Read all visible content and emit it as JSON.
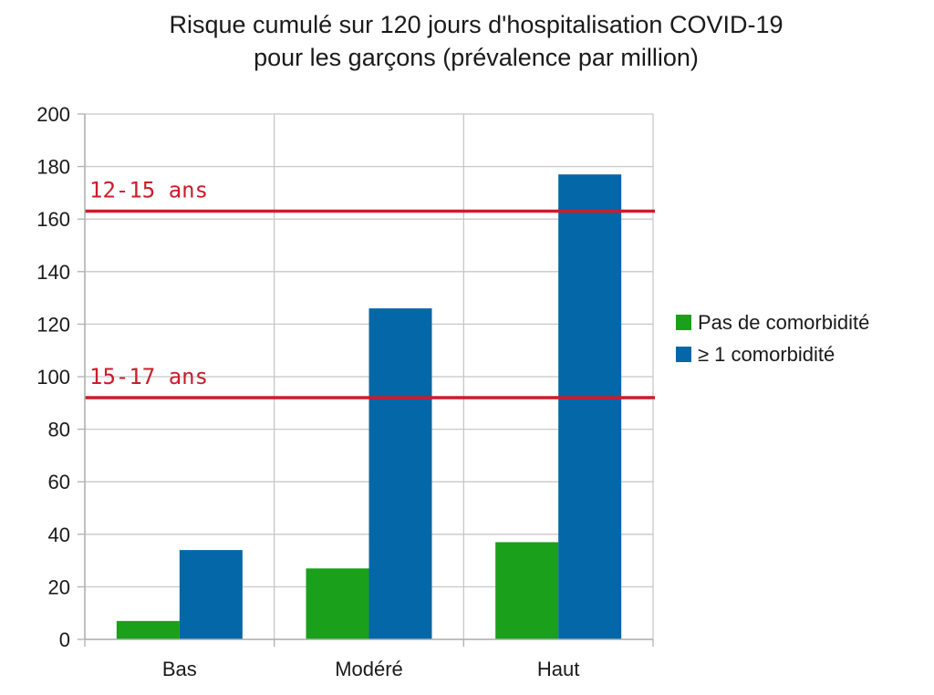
{
  "chart_data": {
    "type": "bar",
    "title": [
      "Risque cumulé sur 120 jours d'hospitalisation COVID-19",
      "pour les garçons (prévalence par million)"
    ],
    "xlabel": "",
    "ylabel": "",
    "categories": [
      "Bas",
      "Modéré",
      "Haut"
    ],
    "series": [
      {
        "name": "Pas de comorbidité",
        "values": [
          7,
          27,
          37
        ],
        "color": "#1aa01a"
      },
      {
        "name": "≥ 1 comorbidité",
        "values": [
          34,
          126,
          177
        ],
        "color": "#0467a8"
      }
    ],
    "ylim": [
      0,
      200
    ],
    "yticks": [
      0,
      20,
      40,
      60,
      80,
      100,
      120,
      140,
      160,
      180,
      200
    ],
    "grid": true,
    "legend": "right",
    "reference_lines": [
      {
        "label": "12-15 ans",
        "value": 163,
        "color": "#cc1c2c"
      },
      {
        "label": "15-17 ans",
        "value": 92,
        "color": "#cc1c2c"
      }
    ]
  }
}
